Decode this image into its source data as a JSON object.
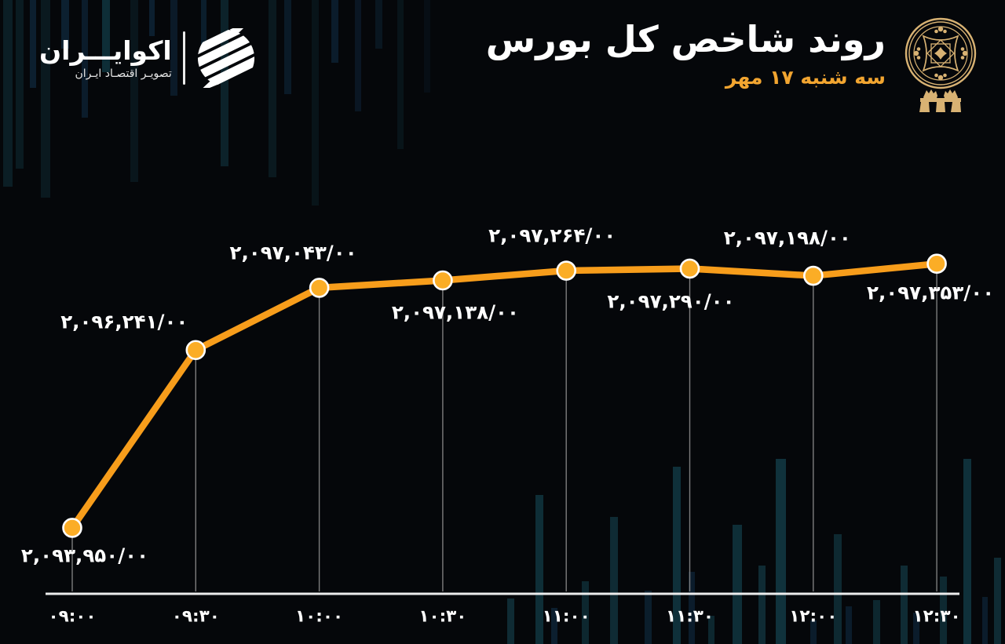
{
  "header": {
    "title": "روند شاخص کل بورس",
    "subtitle": "سه شنبه ۱۷ مهر",
    "brand": {
      "name": "اکوایـــران",
      "tagline": "تصویـر اقتصـاد ایـران"
    }
  },
  "colors": {
    "background": "#05070a",
    "line": "#F79D1B",
    "marker": "#FBAD26",
    "marker_stroke": "#FFFFFF",
    "subtitle_orange": "#F2A530",
    "emblem_gold": "#D8B273",
    "axis": "#ECECEC",
    "drop_line": "#7D7D7D",
    "text": "#FFFFFF"
  },
  "chart_data": {
    "type": "line",
    "title": "روند شاخص کل بورس",
    "date_label": "سه شنبه ۱۷ مهر",
    "categories": [
      "09:00",
      "09:30",
      "10:00",
      "10:30",
      "11:00",
      "11:30",
      "12:00",
      "12:30"
    ],
    "x_tick_labels": [
      "۰۹:۰۰",
      "۰۹:۳۰",
      "۱۰:۰۰",
      "۱۰:۳۰",
      "۱۱:۰۰",
      "۱۱:۳۰",
      "۱۲:۰۰",
      "۱۲:۳۰"
    ],
    "values": [
      2093950.0,
      2096241.0,
      2097043.0,
      2097138.0,
      2097264.0,
      2097290.0,
      2097198.0,
      2097353.0
    ],
    "point_labels": [
      "۲,۰۹۳,۹۵۰/۰۰",
      "۲,۰۹۶,۲۴۱/۰۰",
      "۲,۰۹۷,۰۴۳/۰۰",
      "۲,۰۹۷,۱۳۸/۰۰",
      "۲,۰۹۷,۲۶۴/۰۰",
      "۲,۰۹۷,۲۹۰/۰۰",
      "۲,۰۹۷,۱۹۸/۰۰",
      "۲,۰۹۷,۳۵۳/۰۰"
    ],
    "label_positions": [
      "below",
      "above",
      "above",
      "below",
      "above",
      "below",
      "above",
      "below"
    ],
    "ylim": [
      2093100,
      2097800
    ],
    "grid": false,
    "legend": false,
    "line_color": "#F79D1B",
    "marker_color": "#FBAD26"
  }
}
